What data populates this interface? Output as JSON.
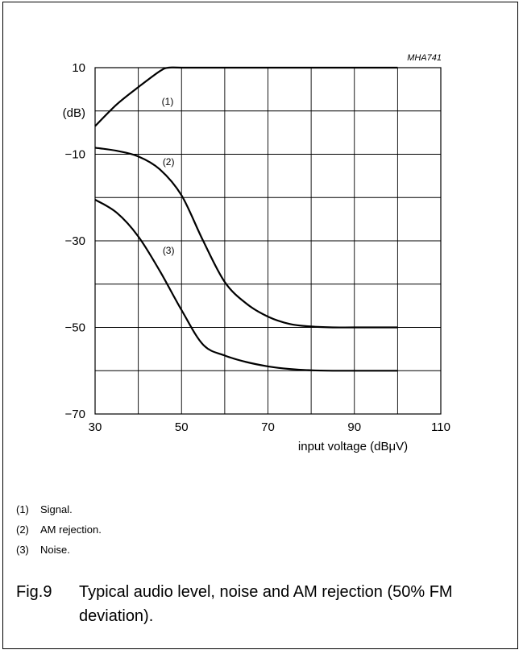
{
  "chart_data": {
    "type": "line",
    "code": "MHA741",
    "ylabel": "(dB)",
    "xlabel": "input voltage (dBμV)",
    "xlim": [
      30,
      110
    ],
    "ylim": [
      -70,
      10
    ],
    "x_ticks": [
      30,
      50,
      70,
      90,
      110
    ],
    "y_ticks": [
      10,
      -10,
      -30,
      -50,
      -70
    ],
    "grid": true,
    "series": [
      {
        "name": "(1)",
        "x": [
          30,
          35,
          40,
          45,
          47,
          50,
          60,
          70,
          80,
          90,
          100
        ],
        "y": [
          -3.5,
          1.5,
          5.5,
          9.2,
          10,
          10,
          10,
          10,
          10,
          10,
          10
        ]
      },
      {
        "name": "(2)",
        "x": [
          30,
          35,
          40,
          45,
          50,
          55,
          60,
          65,
          70,
          75,
          80,
          85,
          90,
          100
        ],
        "y": [
          -8.5,
          -9.2,
          -10.5,
          -13.5,
          -19.5,
          -30,
          -39.5,
          -44.5,
          -47.5,
          -49.2,
          -49.8,
          -50,
          -50,
          -50
        ],
        "label_at": [
          47,
          -12.5
        ]
      },
      {
        "name": "(3)",
        "x": [
          30,
          35,
          40,
          45,
          50,
          55,
          60,
          65,
          70,
          75,
          80,
          85,
          90,
          100
        ],
        "y": [
          -20.5,
          -23.5,
          -29,
          -37,
          -46,
          -54,
          -56.5,
          -58,
          -59,
          -59.6,
          -59.9,
          -60,
          -60,
          -60
        ],
        "label_at": [
          47,
          -33
        ]
      }
    ]
  },
  "notes": [
    {
      "num": "(1)",
      "text": "Signal."
    },
    {
      "num": "(2)",
      "text": "AM rejection."
    },
    {
      "num": "(3)",
      "text": "Noise."
    }
  ],
  "caption": {
    "fig": "Fig.9",
    "text": "Typical audio level, noise and AM rejection (50% FM deviation)."
  }
}
